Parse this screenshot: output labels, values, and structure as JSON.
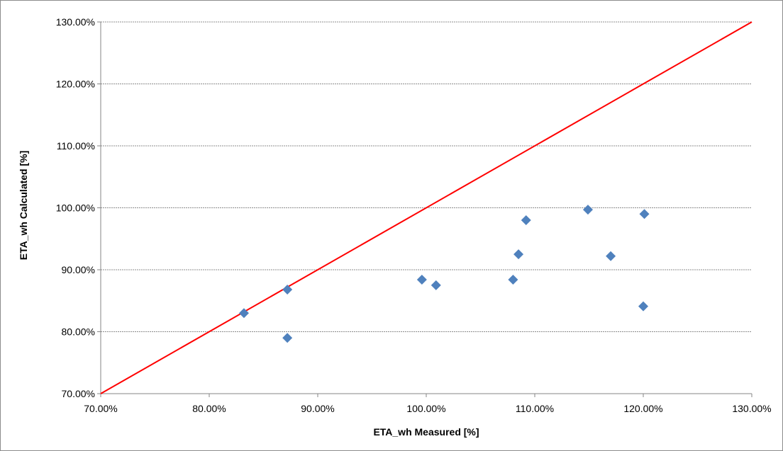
{
  "chart_data": {
    "type": "scatter",
    "title": "",
    "xlabel": "ETA_wh Measured [%]",
    "ylabel": "ETA_wh Calculated [%]",
    "xlim": [
      70,
      130
    ],
    "ylim": [
      70,
      130
    ],
    "x_ticks": [
      70,
      80,
      90,
      100,
      110,
      120,
      130
    ],
    "y_ticks": [
      70,
      80,
      90,
      100,
      110,
      120,
      130
    ],
    "x_tick_labels": [
      "70.00%",
      "80.00%",
      "90.00%",
      "100.00%",
      "110.00%",
      "120.00%",
      "130.00%"
    ],
    "y_tick_labels": [
      "70.00%",
      "80.00%",
      "90.00%",
      "100.00%",
      "110.00%",
      "120.00%",
      "130.00%"
    ],
    "grid": "horizontal dashed",
    "legend": "none",
    "series": [
      {
        "marker": "diamond",
        "color": "#4f81bd",
        "points": [
          {
            "x": 83.2,
            "y": 83.0
          },
          {
            "x": 87.2,
            "y": 86.8
          },
          {
            "x": 87.2,
            "y": 79.0
          },
          {
            "x": 99.6,
            "y": 88.4
          },
          {
            "x": 100.9,
            "y": 87.5
          },
          {
            "x": 108.0,
            "y": 88.4
          },
          {
            "x": 108.5,
            "y": 92.5
          },
          {
            "x": 109.2,
            "y": 98.0
          },
          {
            "x": 114.9,
            "y": 99.7
          },
          {
            "x": 117.0,
            "y": 92.2
          },
          {
            "x": 120.1,
            "y": 99.0
          },
          {
            "x": 120.0,
            "y": 84.1
          }
        ]
      }
    ],
    "reference_line": {
      "from": [
        70,
        70
      ],
      "to": [
        130,
        130
      ],
      "color": "#ff0000"
    }
  }
}
